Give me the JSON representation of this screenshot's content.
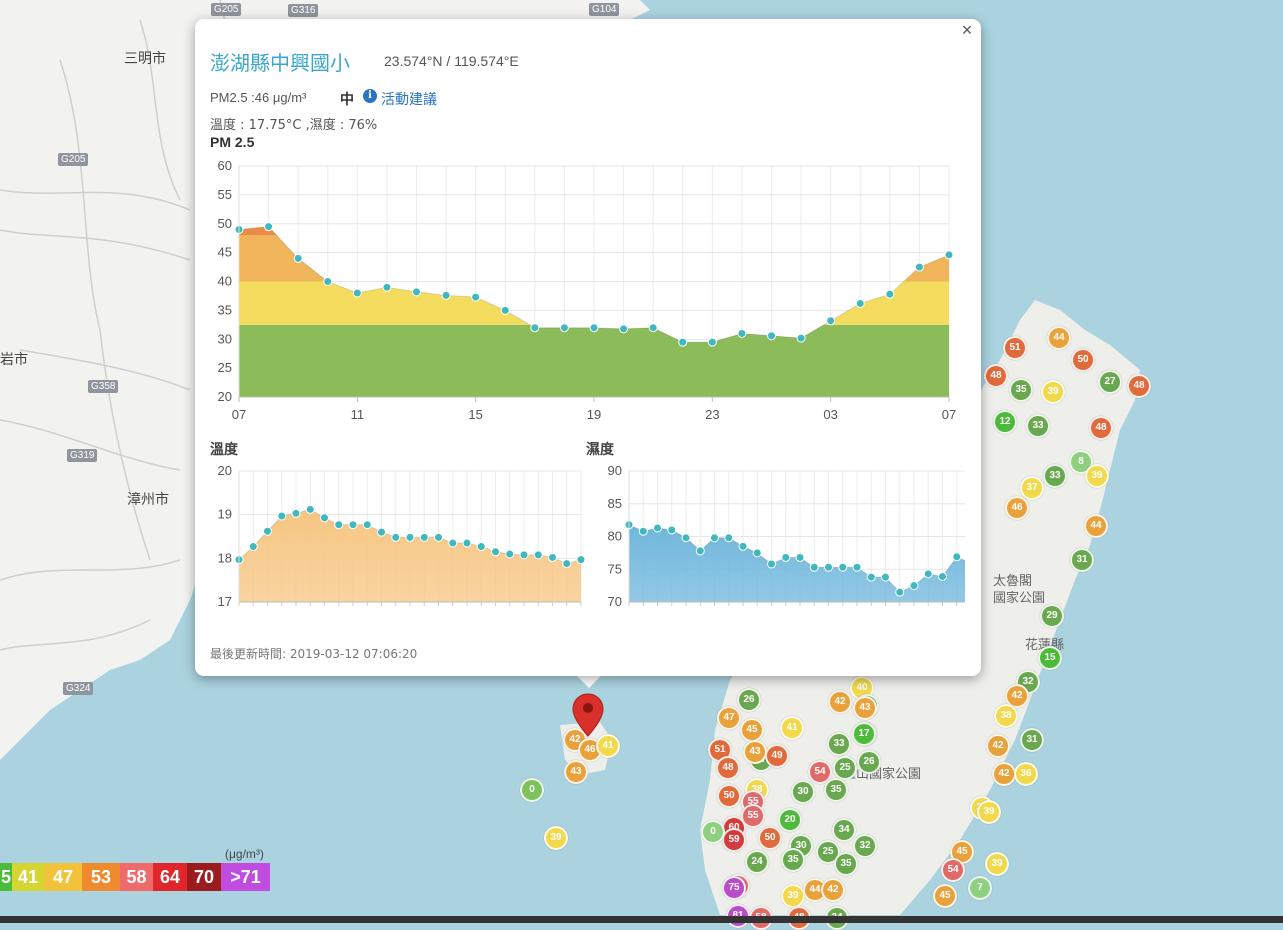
{
  "map": {
    "labels": {
      "sanming": "三明市",
      "yanshi": "岩市",
      "zhangzhou": "漳州市",
      "taroko": "太魯閣\n國家公園",
      "yushan": "玉山國家公園",
      "hualien": "花蓮縣"
    },
    "roads": [
      "G205",
      "G316",
      "G104",
      "G205",
      "G358",
      "G319",
      "G324"
    ],
    "markers": [
      {
        "v": "42",
        "c": "#e9a23b"
      },
      {
        "v": "46",
        "c": "#e9a23b"
      },
      {
        "v": "41",
        "c": "#f2d94c"
      },
      {
        "v": "43",
        "c": "#e9a23b"
      },
      {
        "v": "0",
        "c": "#7ec25d"
      },
      {
        "v": "39",
        "c": "#f2d94c"
      },
      {
        "v": "51",
        "c": "#e06a3c"
      },
      {
        "v": "44",
        "c": "#e9a23b"
      },
      {
        "v": "50",
        "c": "#e06a3c"
      },
      {
        "v": "48",
        "c": "#e06a3c"
      },
      {
        "v": "35",
        "c": "#6aa84f"
      },
      {
        "v": "39",
        "c": "#f2d94c"
      },
      {
        "v": "27",
        "c": "#6aa84f"
      },
      {
        "v": "48",
        "c": "#e06a3c"
      },
      {
        "v": "12",
        "c": "#4cbb3a"
      },
      {
        "v": "33",
        "c": "#6aa84f"
      },
      {
        "v": "48",
        "c": "#e06a3c"
      },
      {
        "v": "8",
        "c": "#8fd080"
      },
      {
        "v": "33",
        "c": "#6aa84f"
      },
      {
        "v": "39",
        "c": "#f2d94c"
      },
      {
        "v": "37",
        "c": "#f2d94c"
      },
      {
        "v": "46",
        "c": "#e9a23b"
      },
      {
        "v": "44",
        "c": "#e9a23b"
      },
      {
        "v": "31",
        "c": "#6aa84f"
      },
      {
        "v": "29",
        "c": "#6aa84f"
      },
      {
        "v": "15",
        "c": "#4cbb3a"
      },
      {
        "v": "32",
        "c": "#6aa84f"
      },
      {
        "v": "42",
        "c": "#e9a23b"
      },
      {
        "v": "38",
        "c": "#f2d94c"
      },
      {
        "v": "31",
        "c": "#6aa84f"
      },
      {
        "v": "42",
        "c": "#e9a23b"
      },
      {
        "v": "42",
        "c": "#e9a23b"
      },
      {
        "v": "36",
        "c": "#f2d94c"
      },
      {
        "v": "38",
        "c": "#f2d94c"
      },
      {
        "v": "39",
        "c": "#f2d94c"
      },
      {
        "v": "45",
        "c": "#e9a23b"
      },
      {
        "v": "54",
        "c": "#e06a6a"
      },
      {
        "v": "39",
        "c": "#f2d94c"
      },
      {
        "v": "45",
        "c": "#e9a23b"
      },
      {
        "v": "7",
        "c": "#8fd080"
      },
      {
        "v": "40",
        "c": "#f2d94c"
      },
      {
        "v": "30",
        "c": "#6aa84f"
      },
      {
        "v": "26",
        "c": "#6aa84f"
      },
      {
        "v": "42",
        "c": "#e9a23b"
      },
      {
        "v": "43",
        "c": "#e9a23b"
      },
      {
        "v": "20",
        "c": "#4cbb3a"
      },
      {
        "v": "47",
        "c": "#e9a23b"
      },
      {
        "v": "41",
        "c": "#f2d94c"
      },
      {
        "v": "17",
        "c": "#4cbb3a"
      },
      {
        "v": "51",
        "c": "#e06a3c"
      },
      {
        "v": "45",
        "c": "#e9a23b"
      },
      {
        "v": "33",
        "c": "#6aa84f"
      },
      {
        "v": "27",
        "c": "#6aa84f"
      },
      {
        "v": "49",
        "c": "#e06a3c"
      },
      {
        "v": "43",
        "c": "#e9a23b"
      },
      {
        "v": "48",
        "c": "#e06a3c"
      },
      {
        "v": "54",
        "c": "#e06a6a"
      },
      {
        "v": "25",
        "c": "#6aa84f"
      },
      {
        "v": "26",
        "c": "#6aa84f"
      },
      {
        "v": "38",
        "c": "#f2d94c"
      },
      {
        "v": "55",
        "c": "#e06a6a"
      },
      {
        "v": "30",
        "c": "#6aa84f"
      },
      {
        "v": "35",
        "c": "#6aa84f"
      },
      {
        "v": "50",
        "c": "#e06a3c"
      },
      {
        "v": "55",
        "c": "#e06a6a"
      },
      {
        "v": "20",
        "c": "#4cbb3a"
      },
      {
        "v": "34",
        "c": "#6aa84f"
      },
      {
        "v": "60",
        "c": "#d33c3c"
      },
      {
        "v": "59",
        "c": "#d33c3c"
      },
      {
        "v": "50",
        "c": "#e06a3c"
      },
      {
        "v": "30",
        "c": "#6aa84f"
      },
      {
        "v": "25",
        "c": "#6aa84f"
      },
      {
        "v": "32",
        "c": "#6aa84f"
      },
      {
        "v": "0",
        "c": "#8fd080"
      },
      {
        "v": "24",
        "c": "#6aa84f"
      },
      {
        "v": "35",
        "c": "#6aa84f"
      },
      {
        "v": "35",
        "c": "#6aa84f"
      },
      {
        "v": "54",
        "c": "#e06a6a"
      },
      {
        "v": "75",
        "c": "#b84cc9"
      },
      {
        "v": "39",
        "c": "#f2d94c"
      },
      {
        "v": "44",
        "c": "#e9a23b"
      },
      {
        "v": "42",
        "c": "#e9a23b"
      },
      {
        "v": "81",
        "c": "#b84cc9"
      },
      {
        "v": "58",
        "c": "#e06a6a"
      },
      {
        "v": "48",
        "c": "#e06a3c"
      },
      {
        "v": "34",
        "c": "#6aa84f"
      }
    ]
  },
  "popup": {
    "close": "×",
    "site_name": "澎湖縣中興國小",
    "coords": "23.574°N / 119.574°E",
    "pm_line": "PM2.5 :46 μg/m³",
    "pm_level": "中",
    "info_icon": "i",
    "advice": "活動建議",
    "temp_line": "溫度 : 17.75°C ,濕度 : 76%",
    "pm_title": "PM 2.5",
    "temp_title": "溫度",
    "hum_title": "濕度",
    "updated": "最後更新時間: 2019-03-12 07:06:20"
  },
  "chart_data": [
    {
      "type": "area",
      "title": "PM 2.5",
      "x_ticks": [
        "07",
        "11",
        "15",
        "19",
        "23",
        "03",
        "07"
      ],
      "y_ticks": [
        20,
        25,
        30,
        35,
        40,
        45,
        50,
        55,
        60
      ],
      "ylim": [
        20,
        60
      ],
      "values": [
        49,
        49.5,
        44,
        40,
        38,
        39,
        38.2,
        37.6,
        37.3,
        35,
        32,
        32,
        32,
        31.8,
        32,
        29.5,
        29.5,
        31,
        30.6,
        30.2,
        33.2,
        36.2,
        37.8,
        42.5,
        44.6
      ],
      "color_bands": [
        {
          "max": 32.5,
          "color": "#8cbc5a"
        },
        {
          "max": 40,
          "color": "#f4dd5e"
        },
        {
          "max": 48,
          "color": "#f0b45a"
        },
        {
          "max": 60,
          "color": "#ea8c45"
        }
      ]
    },
    {
      "type": "area",
      "title": "溫度",
      "y_ticks": [
        17,
        18,
        19,
        20
      ],
      "ylim": [
        17,
        20
      ],
      "values": [
        17.97,
        18.27,
        18.62,
        18.97,
        19.03,
        19.12,
        18.93,
        18.77,
        18.77,
        18.77,
        18.6,
        18.48,
        18.48,
        18.48,
        18.48,
        18.35,
        18.35,
        18.27,
        18.15,
        18.1,
        18.08,
        18.08,
        18.02,
        17.88,
        17.97
      ],
      "color": "#f6c682"
    },
    {
      "type": "area",
      "title": "濕度",
      "y_ticks": [
        70,
        75,
        80,
        85,
        90
      ],
      "ylim": [
        70,
        90
      ],
      "values": [
        81.8,
        80.8,
        81.3,
        81,
        79.8,
        77.8,
        79.8,
        79.8,
        78.5,
        77.5,
        75.8,
        76.8,
        76.8,
        75.3,
        75.3,
        75.3,
        75.3,
        73.8,
        73.8,
        71.5,
        72.5,
        74.3,
        73.9,
        76.9,
        75.9
      ],
      "color": "#6fb6dc"
    }
  ],
  "legend": {
    "unit": "(μg/m³)",
    "items": [
      {
        "label": "5",
        "color": "#4cbb3a"
      },
      {
        "label": "41",
        "color": "#d6d633"
      },
      {
        "label": "47",
        "color": "#f2c23a"
      },
      {
        "label": "53",
        "color": "#ef8a2e"
      },
      {
        "label": "58",
        "color": "#ef6a6a"
      },
      {
        "label": "64",
        "color": "#e0262a"
      },
      {
        "label": "70",
        "color": "#9a1c1c"
      },
      {
        "label": ">71",
        "color": "#c04ce0"
      }
    ]
  }
}
